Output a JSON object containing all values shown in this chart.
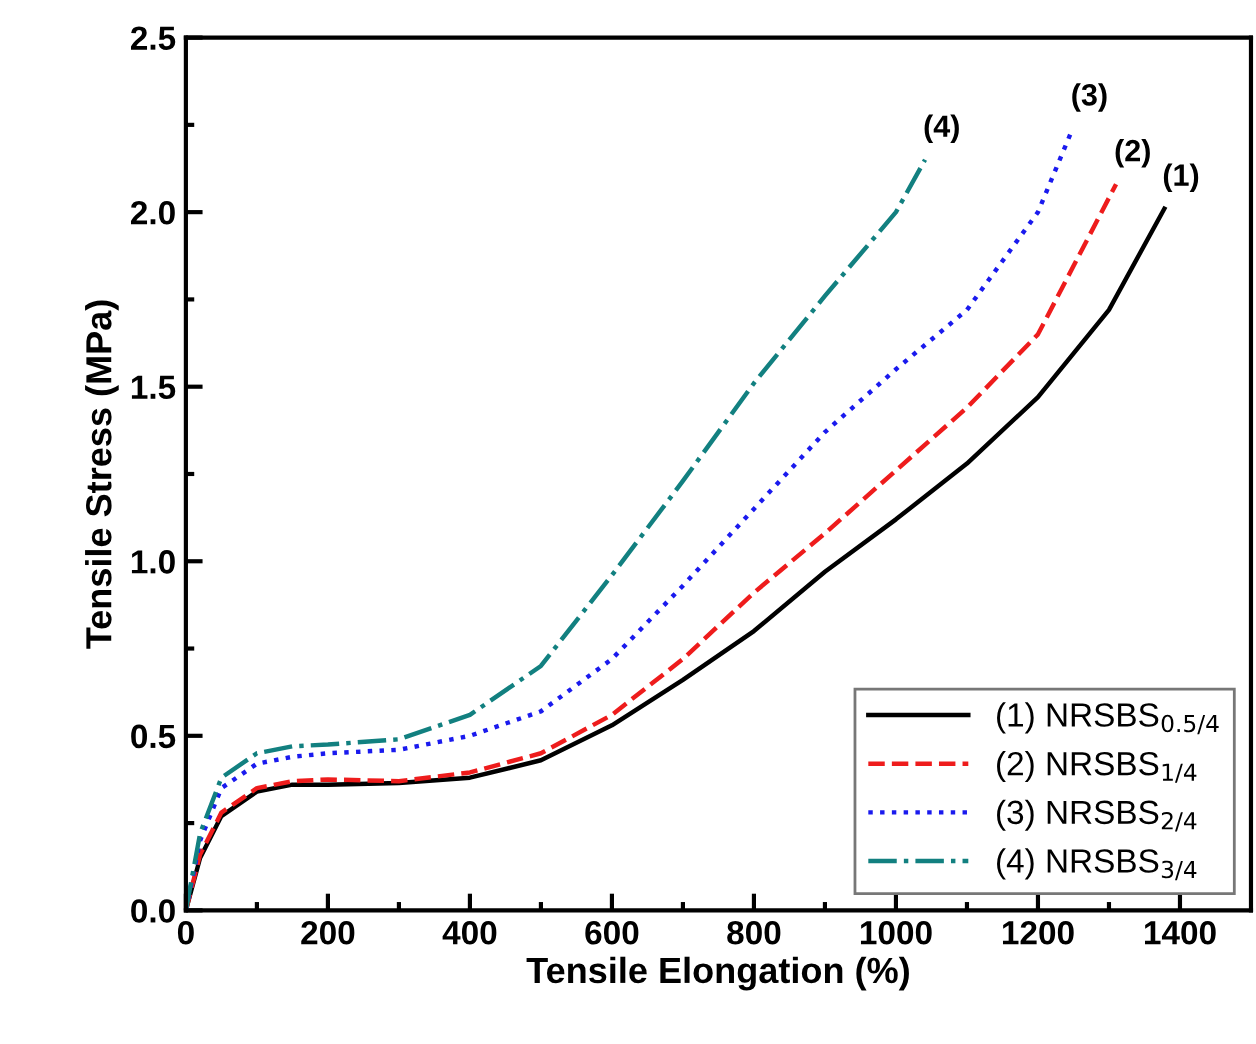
{
  "chart_data": {
    "type": "line",
    "xlabel": "Tensile Elongation (%)",
    "ylabel": "Tensile Stress (MPa)",
    "xlim": [
      0,
      1500
    ],
    "xticks": [
      0,
      200,
      400,
      600,
      800,
      1000,
      1200,
      1400
    ],
    "ylim": [
      0,
      2.5
    ],
    "yticks": [
      {
        "value": 0,
        "label": "0.0"
      },
      {
        "value": 0.5,
        "label": "0.5"
      },
      {
        "value": 1,
        "label": "1.0"
      },
      {
        "value": 1.5,
        "label": "1.5"
      },
      {
        "value": 2,
        "label": "2.0"
      },
      {
        "value": 2.5,
        "label": "2.5"
      }
    ],
    "grid": false,
    "legend": "bottom right",
    "marker": "none",
    "series": [
      {
        "name": "(1) NRSBS$_{0.5/4}$",
        "color": "#000000",
        "line_style": "solid",
        "x": [
          0,
          20,
          50,
          100,
          150,
          200,
          300,
          400,
          500,
          600,
          700,
          800,
          900,
          1000,
          1100,
          1200,
          1300,
          1378
        ],
        "values": [
          0,
          0.15,
          0.27,
          0.34,
          0.36,
          0.36,
          0.365,
          0.38,
          0.43,
          0.53,
          0.66,
          0.8,
          0.97,
          1.12,
          1.28,
          1.47,
          1.72,
          2.01
        ]
      },
      {
        "name": "(2) NRSBS$_{1/4}$",
        "color": "#ee1c1c",
        "line_style": "dashed",
        "x": [
          0,
          20,
          50,
          100,
          150,
          200,
          300,
          400,
          500,
          600,
          700,
          800,
          900,
          1000,
          1100,
          1200,
          1310
        ],
        "values": [
          0,
          0.16,
          0.28,
          0.35,
          0.37,
          0.375,
          0.37,
          0.395,
          0.45,
          0.56,
          0.72,
          0.91,
          1.08,
          1.26,
          1.44,
          1.65,
          2.08
        ]
      },
      {
        "name": "(3) NRSBS$_{2/4}$",
        "color": "#1a1aee",
        "line_style": "dotted",
        "x": [
          0,
          20,
          50,
          100,
          150,
          200,
          300,
          400,
          500,
          600,
          700,
          800,
          900,
          1000,
          1100,
          1200,
          1249
        ],
        "values": [
          0,
          0.2,
          0.35,
          0.42,
          0.44,
          0.45,
          0.46,
          0.5,
          0.57,
          0.72,
          0.93,
          1.15,
          1.37,
          1.55,
          1.72,
          2.0,
          2.24
        ]
      },
      {
        "name": "(4) NRSBS$_{3/4}$",
        "color": "#128080",
        "line_style": "dashdot",
        "x": [
          0,
          20,
          50,
          100,
          150,
          200,
          300,
          400,
          500,
          600,
          700,
          800,
          900,
          1000,
          1041
        ],
        "values": [
          0,
          0.22,
          0.38,
          0.45,
          0.47,
          0.475,
          0.49,
          0.56,
          0.7,
          0.96,
          1.23,
          1.51,
          1.76,
          2.0,
          2.15
        ]
      }
    ],
    "annotations": [
      {
        "text": "(1)",
        "x": 1378,
        "y": 2.01
      },
      {
        "text": "(2)",
        "x": 1310,
        "y": 2.08
      },
      {
        "text": "(3)",
        "x": 1249,
        "y": 2.24
      },
      {
        "text": "(4)",
        "x": 1041,
        "y": 2.15
      }
    ]
  }
}
